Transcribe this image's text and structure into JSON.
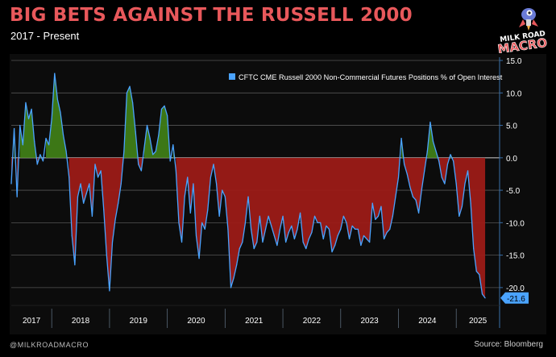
{
  "header": {
    "title": "BIG BETS AGAINST THE RUSSELL 2000",
    "subtitle": "2017 - Present"
  },
  "brand": {
    "logo_text_line1": "MILK ROAD",
    "logo_text_line2": "MACRO",
    "handle": "@MILKROADMACRO",
    "source": "Source: Bloomberg"
  },
  "colors": {
    "title": "#e8585b",
    "line": "#4aa3ff",
    "positive_fill": "#3f7d17",
    "negative_fill": "#9c1b17",
    "background": "#000000",
    "panel": "#0c0c0c"
  },
  "chart_data": {
    "type": "area",
    "legend": "CFTC CME Russell 2000 Non-Commercial Futures Positions % of Open Interest",
    "legend_position": "top-right",
    "y_axis_side": "right",
    "ylim": [
      -22.5,
      15.5
    ],
    "yticks": [
      15.0,
      10.0,
      5.0,
      0.0,
      -5.0,
      -10.0,
      -15.0,
      -20.0
    ],
    "ytick_labels": [
      "15.0",
      "10.0",
      "5.0",
      "0.0",
      "-5.0",
      "-10.0",
      "-15.0",
      "-20.0"
    ],
    "grid": true,
    "x_labels": [
      "2017",
      "2018",
      "2019",
      "2020",
      "2021",
      "2022",
      "2023",
      "2024",
      "2025"
    ],
    "x_range": [
      2017.3,
      2025.75
    ],
    "last_value_label": "-21.6",
    "x": [
      2017.3,
      2017.35,
      2017.4,
      2017.45,
      2017.5,
      2017.55,
      2017.6,
      2017.65,
      2017.7,
      2017.75,
      2017.8,
      2017.85,
      2017.9,
      2017.95,
      2018.0,
      2018.05,
      2018.1,
      2018.15,
      2018.2,
      2018.25,
      2018.3,
      2018.35,
      2018.4,
      2018.45,
      2018.5,
      2018.55,
      2018.6,
      2018.65,
      2018.7,
      2018.75,
      2018.8,
      2018.85,
      2018.9,
      2018.95,
      2019.0,
      2019.05,
      2019.1,
      2019.15,
      2019.2,
      2019.25,
      2019.3,
      2019.35,
      2019.4,
      2019.45,
      2019.5,
      2019.55,
      2019.6,
      2019.65,
      2019.7,
      2019.75,
      2019.8,
      2019.85,
      2019.9,
      2019.95,
      2020.0,
      2020.05,
      2020.1,
      2020.15,
      2020.2,
      2020.25,
      2020.3,
      2020.35,
      2020.4,
      2020.45,
      2020.5,
      2020.55,
      2020.6,
      2020.65,
      2020.7,
      2020.75,
      2020.8,
      2020.85,
      2020.9,
      2020.95,
      2021.0,
      2021.05,
      2021.1,
      2021.15,
      2021.2,
      2021.25,
      2021.3,
      2021.35,
      2021.4,
      2021.45,
      2021.5,
      2021.55,
      2021.6,
      2021.65,
      2021.7,
      2021.75,
      2021.8,
      2021.85,
      2021.9,
      2021.95,
      2022.0,
      2022.05,
      2022.1,
      2022.15,
      2022.2,
      2022.25,
      2022.3,
      2022.35,
      2022.4,
      2022.45,
      2022.5,
      2022.55,
      2022.6,
      2022.65,
      2022.7,
      2022.75,
      2022.8,
      2022.85,
      2022.9,
      2022.95,
      2023.0,
      2023.05,
      2023.1,
      2023.15,
      2023.2,
      2023.25,
      2023.3,
      2023.35,
      2023.4,
      2023.45,
      2023.5,
      2023.55,
      2023.6,
      2023.65,
      2023.7,
      2023.75,
      2023.8,
      2023.85,
      2023.9,
      2023.95,
      2024.0,
      2024.05,
      2024.1,
      2024.15,
      2024.2,
      2024.25,
      2024.3,
      2024.35,
      2024.4,
      2024.45,
      2024.5,
      2024.55,
      2024.6,
      2024.65,
      2024.7,
      2024.75,
      2024.8,
      2024.85,
      2024.9,
      2024.95,
      2025.0,
      2025.05,
      2025.1,
      2025.15,
      2025.2,
      2025.25,
      2025.3,
      2025.35,
      2025.4,
      2025.45,
      2025.5
    ],
    "values": [
      -4.0,
      4.5,
      -6.0,
      5.0,
      2.0,
      8.5,
      6.0,
      7.5,
      2.5,
      -1.0,
      0.5,
      -0.5,
      3.0,
      2.0,
      6.0,
      13.0,
      9.0,
      7.0,
      3.5,
      1.0,
      -3.0,
      -12.0,
      -16.5,
      -6.0,
      -4.0,
      -7.0,
      -5.5,
      -4.0,
      -9.0,
      -1.0,
      -3.0,
      -2.0,
      -8.0,
      -15.0,
      -20.5,
      -13.0,
      -9.5,
      -7.0,
      -4.0,
      1.0,
      10.0,
      11.0,
      8.5,
      4.0,
      -1.0,
      -2.0,
      1.5,
      5.0,
      3.0,
      0.5,
      1.0,
      3.5,
      7.5,
      8.0,
      6.5,
      -0.5,
      2.0,
      -2.0,
      -10.0,
      -13.0,
      -6.0,
      -3.0,
      -8.5,
      -4.0,
      -12.0,
      -15.5,
      -10.0,
      -11.0,
      -8.0,
      -3.0,
      -1.0,
      -4.0,
      -9.0,
      -5.0,
      -6.0,
      -11.0,
      -20.0,
      -18.5,
      -16.5,
      -14.0,
      -13.0,
      -10.0,
      -6.0,
      -11.0,
      -14.0,
      -13.0,
      -9.0,
      -13.0,
      -11.0,
      -9.0,
      -10.5,
      -12.0,
      -13.5,
      -11.0,
      -9.0,
      -13.0,
      -11.5,
      -10.5,
      -12.5,
      -11.0,
      -8.5,
      -13.0,
      -14.0,
      -12.5,
      -11.5,
      -9.0,
      -10.0,
      -10.0,
      -12.5,
      -10.5,
      -11.0,
      -14.5,
      -13.5,
      -12.0,
      -11.0,
      -9.0,
      -10.0,
      -12.5,
      -10.5,
      -11.0,
      -11.0,
      -13.5,
      -12.0,
      -12.5,
      -13.0,
      -7.0,
      -9.5,
      -9.0,
      -7.5,
      -12.5,
      -11.5,
      -11.0,
      -9.0,
      -6.0,
      -3.0,
      3.0,
      -1.0,
      -2.5,
      -4.5,
      -6.0,
      -6.5,
      -8.5,
      -5.0,
      -2.0,
      1.0,
      5.5,
      2.5,
      1.0,
      -0.5,
      -3.0,
      -4.0,
      -1.0,
      0.5,
      -0.5,
      -4.0,
      -9.0,
      -7.5,
      -4.0,
      -2.0,
      -7.0,
      -14.0,
      -17.5,
      -18.0,
      -21.0,
      -21.6
    ]
  }
}
